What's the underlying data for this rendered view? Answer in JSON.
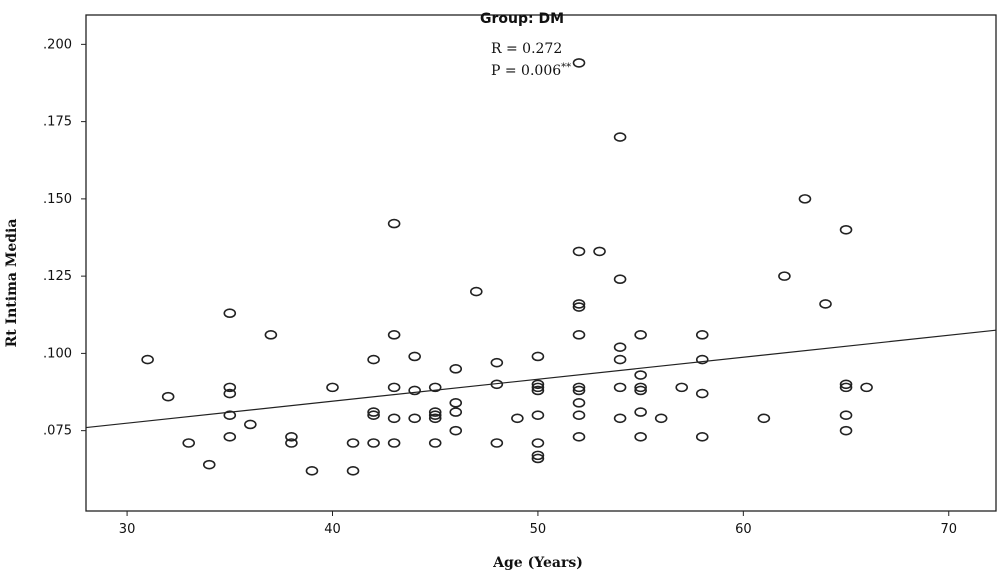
{
  "chart_data": {
    "type": "scatter",
    "title": "Group: DM",
    "xlabel": "Age (Years)",
    "ylabel": "Rt Intima Media",
    "xlim": [
      28,
      72.3
    ],
    "ylim": [
      0.049,
      0.2095
    ],
    "x_ticks": [
      30,
      40,
      50,
      60,
      70
    ],
    "x_tick_labels": [
      "30",
      "40",
      "50",
      "60",
      "70"
    ],
    "y_ticks": [
      0.075,
      0.1,
      0.125,
      0.15,
      0.175,
      0.2
    ],
    "y_tick_labels": [
      ".075",
      ".100",
      ".125",
      ".150",
      ".175",
      ".200"
    ],
    "grid": false,
    "annotations": {
      "r_text": "R = 0.272",
      "p_text": "P = 0.006",
      "p_sup": "**"
    },
    "fit_line": {
      "x": [
        28,
        72.3
      ],
      "y": [
        0.076,
        0.1075
      ]
    },
    "points": [
      [
        31,
        0.098
      ],
      [
        32,
        0.086
      ],
      [
        33,
        0.071
      ],
      [
        34,
        0.064
      ],
      [
        35,
        0.113
      ],
      [
        35,
        0.089
      ],
      [
        35,
        0.087
      ],
      [
        35,
        0.08
      ],
      [
        35,
        0.073
      ],
      [
        36,
        0.077
      ],
      [
        37,
        0.106
      ],
      [
        38,
        0.073
      ],
      [
        38,
        0.071
      ],
      [
        39,
        0.062
      ],
      [
        40,
        0.089
      ],
      [
        41,
        0.071
      ],
      [
        41,
        0.062
      ],
      [
        42,
        0.098
      ],
      [
        42,
        0.081
      ],
      [
        42,
        0.08
      ],
      [
        42,
        0.071
      ],
      [
        43,
        0.142
      ],
      [
        43,
        0.106
      ],
      [
        43,
        0.089
      ],
      [
        43,
        0.079
      ],
      [
        43,
        0.071
      ],
      [
        44,
        0.099
      ],
      [
        44,
        0.088
      ],
      [
        44,
        0.079
      ],
      [
        45,
        0.089
      ],
      [
        45,
        0.081
      ],
      [
        45,
        0.08
      ],
      [
        45,
        0.079
      ],
      [
        45,
        0.071
      ],
      [
        46,
        0.095
      ],
      [
        46,
        0.084
      ],
      [
        46,
        0.081
      ],
      [
        46,
        0.075
      ],
      [
        47,
        0.12
      ],
      [
        48,
        0.097
      ],
      [
        48,
        0.09
      ],
      [
        48,
        0.071
      ],
      [
        49,
        0.079
      ],
      [
        50,
        0.099
      ],
      [
        50,
        0.09
      ],
      [
        50,
        0.089
      ],
      [
        50,
        0.088
      ],
      [
        50,
        0.08
      ],
      [
        50,
        0.071
      ],
      [
        50,
        0.067
      ],
      [
        50,
        0.066
      ],
      [
        52,
        0.194
      ],
      [
        52,
        0.133
      ],
      [
        52,
        0.116
      ],
      [
        52,
        0.115
      ],
      [
        52,
        0.106
      ],
      [
        52,
        0.089
      ],
      [
        52,
        0.088
      ],
      [
        52,
        0.084
      ],
      [
        52,
        0.08
      ],
      [
        52,
        0.073
      ],
      [
        53,
        0.133
      ],
      [
        54,
        0.17
      ],
      [
        54,
        0.124
      ],
      [
        54,
        0.102
      ],
      [
        54,
        0.098
      ],
      [
        54,
        0.089
      ],
      [
        54,
        0.079
      ],
      [
        55,
        0.106
      ],
      [
        55,
        0.093
      ],
      [
        55,
        0.089
      ],
      [
        55,
        0.088
      ],
      [
        55,
        0.081
      ],
      [
        55,
        0.073
      ],
      [
        56,
        0.079
      ],
      [
        57,
        0.089
      ],
      [
        58,
        0.106
      ],
      [
        58,
        0.098
      ],
      [
        58,
        0.087
      ],
      [
        58,
        0.073
      ],
      [
        61,
        0.079
      ],
      [
        62,
        0.125
      ],
      [
        63,
        0.15
      ],
      [
        64,
        0.116
      ],
      [
        65,
        0.14
      ],
      [
        65,
        0.09
      ],
      [
        65,
        0.089
      ],
      [
        65,
        0.08
      ],
      [
        65,
        0.075
      ],
      [
        66,
        0.089
      ]
    ]
  }
}
